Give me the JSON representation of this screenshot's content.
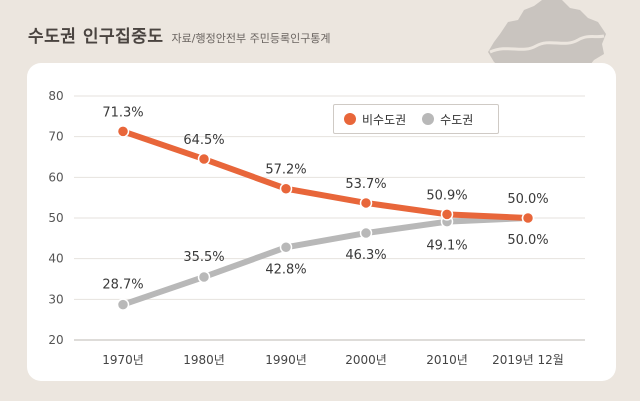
{
  "header": {
    "title": "수도권 인구집중도",
    "subtitle": "자료/행정안전부 주민등록인구통계"
  },
  "colors": {
    "non_capital": "#e8663a",
    "capital": "#b8b8b8",
    "background": "#ece6df",
    "map": "#c9c4bf"
  },
  "chart_data": {
    "type": "line",
    "title": "수도권 인구집중도",
    "xlabel": "",
    "ylabel": "",
    "categories": [
      "1970년",
      "1980년",
      "1990년",
      "2000년",
      "2010년",
      "2019년 12월"
    ],
    "ylim": [
      20,
      80
    ],
    "yticks": [
      20,
      30,
      40,
      50,
      60,
      70,
      80
    ],
    "grid": true,
    "legend_position": "top-right",
    "series": [
      {
        "name": "비수도권",
        "color": "#e8663a",
        "values": [
          71.3,
          64.5,
          57.2,
          53.7,
          50.9,
          50.0
        ],
        "labels": [
          "71.3%",
          "64.5%",
          "57.2%",
          "53.7%",
          "50.9%",
          "50.0%"
        ]
      },
      {
        "name": "수도권",
        "color": "#b8b8b8",
        "values": [
          28.7,
          35.5,
          42.8,
          46.3,
          49.1,
          50.0
        ],
        "labels": [
          "28.7%",
          "35.5%",
          "42.8%",
          "46.3%",
          "49.1%",
          "50.0%"
        ]
      }
    ]
  }
}
